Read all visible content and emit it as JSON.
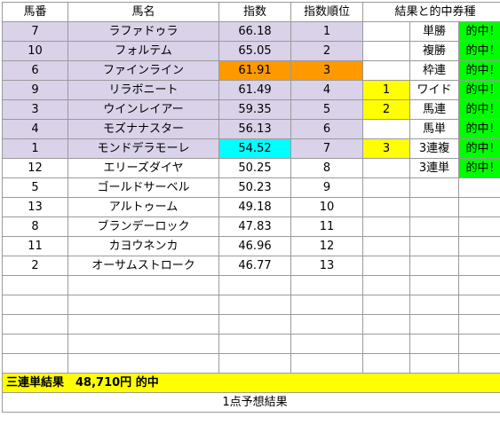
{
  "headers": {
    "num": "馬番",
    "name": "馬名",
    "index": "指数",
    "rank": "指数順位",
    "result": "結果と的中券種"
  },
  "rows": [
    {
      "num": "7",
      "name": "ラファドゥラ",
      "index": "66.18",
      "rank": "1",
      "mark": "",
      "bet": "単勝",
      "hit": "的中！"
    },
    {
      "num": "10",
      "name": "フォルテム",
      "index": "65.05",
      "rank": "2",
      "mark": "",
      "bet": "複勝",
      "hit": "的中！"
    },
    {
      "num": "6",
      "name": "ファインライン",
      "index": "61.91",
      "rank": "3",
      "mark": "",
      "bet": "枠連",
      "hit": "的中！"
    },
    {
      "num": "9",
      "name": "リラボニート",
      "index": "61.49",
      "rank": "4",
      "mark": "1",
      "bet": "ワイド",
      "hit": "的中！"
    },
    {
      "num": "3",
      "name": "ウインレイアー",
      "index": "59.35",
      "rank": "5",
      "mark": "2",
      "bet": "馬連",
      "hit": "的中！"
    },
    {
      "num": "4",
      "name": "モズナナスター",
      "index": "56.13",
      "rank": "6",
      "mark": "",
      "bet": "馬単",
      "hit": "的中！"
    },
    {
      "num": "1",
      "name": "モンドデラモーレ",
      "index": "54.52",
      "rank": "7",
      "mark": "3",
      "bet": "3連複",
      "hit": "的中！"
    },
    {
      "num": "12",
      "name": "エリーズダイヤ",
      "index": "50.25",
      "rank": "8",
      "mark": "",
      "bet": "3連単",
      "hit": "的中！"
    },
    {
      "num": "5",
      "name": "ゴールドサーベル",
      "index": "50.23",
      "rank": "9",
      "mark": "",
      "bet": "",
      "hit": ""
    },
    {
      "num": "13",
      "name": "アルトゥーム",
      "index": "49.18",
      "rank": "10",
      "mark": "",
      "bet": "",
      "hit": ""
    },
    {
      "num": "8",
      "name": "ブランデーロック",
      "index": "47.83",
      "rank": "11",
      "mark": "",
      "bet": "",
      "hit": ""
    },
    {
      "num": "11",
      "name": "カヨウネンカ",
      "index": "46.96",
      "rank": "12",
      "mark": "",
      "bet": "",
      "hit": ""
    },
    {
      "num": "2",
      "name": "オーサムストローク",
      "index": "46.77",
      "rank": "13",
      "mark": "",
      "bet": "",
      "hit": ""
    }
  ],
  "summary": "三連単結果　48,710円 的中",
  "footer": "1点予想結果"
}
